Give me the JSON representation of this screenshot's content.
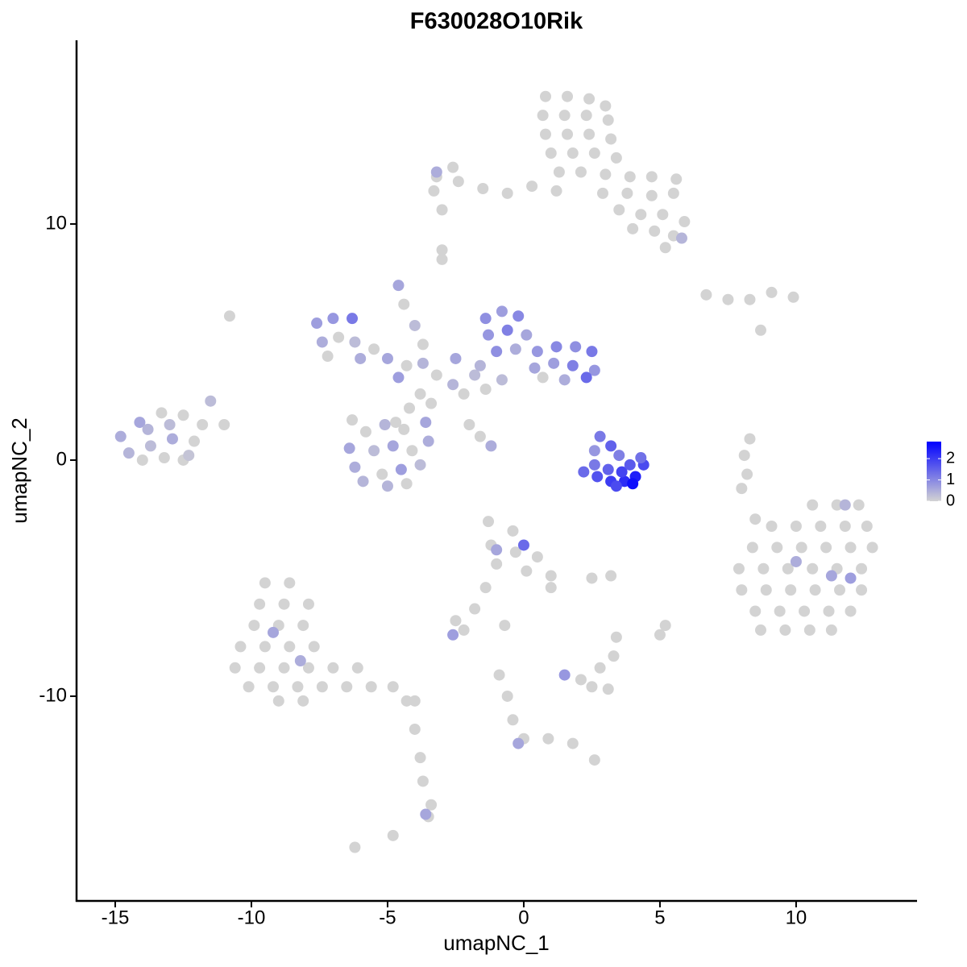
{
  "chart_data": {
    "type": "scatter",
    "title": "F630028O10Rik",
    "x_label": "umapNC_1",
    "y_label": "umapNC_2",
    "xlim": [
      -16.42,
      14.44
    ],
    "ylim": [
      -18.67,
      17.78
    ],
    "xticks": [
      -15,
      -10,
      -5,
      0,
      5,
      10
    ],
    "yticks": [
      -10,
      0,
      10
    ],
    "colors": [
      "#d3d3d3",
      "#0000ff"
    ],
    "clim": [
      0,
      2.8
    ],
    "cticks": [
      0,
      1,
      2
    ],
    "x": [
      0.8,
      1.6,
      2.4,
      3.0,
      0.7,
      1.5,
      2.3,
      3.1,
      0.8,
      1.6,
      2.4,
      3.2,
      1.0,
      1.8,
      2.6,
      3.4,
      1.3,
      2.1,
      3.0,
      3.9,
      4.7,
      5.6,
      1.2,
      2.9,
      3.8,
      4.7,
      5.5,
      3.5,
      4.3,
      5.1,
      5.9,
      4.8,
      5.5,
      4.0,
      0.3,
      -0.6,
      -1.5,
      -2.4,
      -3.2,
      -2.6,
      -3.3,
      -3.0,
      -3.0,
      -3.0,
      6.7,
      7.5,
      8.3,
      9.1,
      9.9,
      8.7,
      8.3,
      8.1,
      8.2,
      8.0,
      8.5,
      -10.8,
      5.2,
      2.5,
      3.2,
      -0.7,
      5.0,
      5.2,
      10.6,
      11.5,
      12.3,
      9.1,
      10.0,
      10.9,
      11.8,
      12.6,
      8.4,
      9.3,
      10.2,
      11.1,
      12.0,
      12.8,
      7.9,
      8.8,
      9.7,
      10.6,
      11.5,
      12.4,
      8.0,
      8.9,
      9.8,
      10.7,
      11.6,
      12.4,
      8.5,
      9.4,
      10.3,
      11.2,
      12.0,
      8.7,
      9.6,
      10.5,
      11.3,
      -9.5,
      -8.6,
      -9.7,
      -8.8,
      -7.9,
      -9.9,
      -9.0,
      -8.1,
      -10.4,
      -9.5,
      -8.6,
      -7.7,
      -10.6,
      -9.7,
      -8.8,
      -7.9,
      -7.0,
      -6.1,
      -10.1,
      -9.2,
      -8.3,
      -7.4,
      -6.5,
      -5.6,
      -4.8,
      -9.0,
      -8.1,
      -4.3,
      -4.0,
      -4.0,
      -3.8,
      -3.7,
      -3.4,
      -3.5,
      -4.8,
      -6.2,
      -1.3,
      -0.4,
      -1.2,
      -0.3,
      0.5,
      -1.0,
      0.1,
      1.0,
      1.0,
      -1.4,
      -1.8,
      -2.5,
      -2.2,
      2.1,
      2.8,
      3.3,
      2.5,
      3.1,
      3.4,
      -0.9,
      -0.6,
      -0.4,
      0.0,
      0.9,
      1.8,
      2.6,
      -14.8,
      -14.1,
      -13.3,
      -12.5,
      -11.8,
      -11.0,
      -11.5,
      -14.5,
      -13.7,
      -12.9,
      -12.1,
      -13.2,
      -12.5,
      -13.8,
      -13.0,
      -12.3,
      -14.0,
      -7.6,
      -7.0,
      -6.3,
      -7.4,
      -6.8,
      -6.2,
      -5.5,
      -5.0,
      -4.3,
      -3.7,
      -4.6,
      -6.0,
      -7.2,
      -4.6,
      -4.4,
      -4.0,
      -3.7,
      -3.2,
      -2.6,
      -3.8,
      -4.2,
      -3.4,
      -4.7,
      -2.2,
      -1.8,
      -2.0,
      -1.6,
      -1.2,
      -6.4,
      -5.8,
      -5.1,
      -4.4,
      -6.2,
      -5.5,
      -4.8,
      -4.1,
      -3.5,
      -5.9,
      -5.2,
      -4.5,
      -3.8,
      -5.0,
      -4.3,
      -6.3,
      -3.6,
      -1.4,
      -0.8,
      -0.2,
      -1.3,
      -0.6,
      0.1,
      -1.0,
      -0.3,
      0.5,
      1.2,
      1.9,
      2.5,
      0.4,
      1.1,
      1.8,
      2.6,
      -1.6,
      -2.5,
      0.7,
      2.3,
      1.5,
      -0.8,
      -1.4,
      2.8,
      3.2,
      3.5,
      2.2,
      2.7,
      3.2,
      3.7,
      4.1,
      4.4,
      2.6,
      3.1,
      3.6,
      4.0,
      3.9,
      4.3,
      3.4,
      2.6,
      10.0,
      11.3,
      12.0,
      11.8,
      -9.2,
      -8.2,
      -3.6,
      0.0,
      -1.0,
      1.5,
      -0.2,
      -2.6,
      -3.2,
      5.8
    ],
    "y": [
      15.4,
      15.4,
      15.3,
      15.0,
      14.6,
      14.6,
      14.6,
      14.4,
      13.8,
      13.8,
      13.8,
      13.6,
      13.0,
      13.0,
      13.0,
      12.8,
      12.2,
      12.2,
      12.1,
      12.0,
      12.0,
      11.9,
      11.4,
      11.3,
      11.3,
      11.2,
      11.3,
      10.6,
      10.4,
      10.4,
      10.1,
      9.7,
      9.5,
      9.8,
      11.6,
      11.3,
      11.5,
      11.8,
      12.0,
      12.4,
      11.4,
      10.6,
      8.9,
      8.5,
      7.0,
      6.8,
      6.8,
      7.1,
      6.9,
      5.5,
      0.9,
      0.2,
      -0.6,
      -1.2,
      -2.5,
      6.1,
      9.0,
      -5.0,
      -4.9,
      -7.0,
      -7.4,
      -7.0,
      -1.9,
      -1.9,
      -1.9,
      -2.8,
      -2.8,
      -2.8,
      -2.8,
      -2.8,
      -3.7,
      -3.7,
      -3.7,
      -3.7,
      -3.7,
      -3.7,
      -4.6,
      -4.6,
      -4.6,
      -4.6,
      -4.6,
      -4.6,
      -5.5,
      -5.5,
      -5.5,
      -5.5,
      -5.5,
      -5.5,
      -6.4,
      -6.4,
      -6.4,
      -6.4,
      -6.4,
      -7.2,
      -7.2,
      -7.2,
      -7.2,
      -5.2,
      -5.2,
      -6.1,
      -6.1,
      -6.1,
      -7.0,
      -7.0,
      -7.0,
      -7.9,
      -7.9,
      -7.9,
      -7.9,
      -8.8,
      -8.8,
      -8.8,
      -8.8,
      -8.8,
      -8.8,
      -9.6,
      -9.6,
      -9.6,
      -9.6,
      -9.6,
      -9.6,
      -9.6,
      -10.2,
      -10.2,
      -10.2,
      -10.2,
      -11.4,
      -12.6,
      -13.6,
      -14.6,
      -15.1,
      -15.9,
      -16.4,
      -2.6,
      -3.0,
      -3.6,
      -3.9,
      -4.1,
      -4.4,
      -4.7,
      -4.9,
      -5.4,
      -5.4,
      -6.3,
      -6.8,
      -7.2,
      -9.3,
      -8.8,
      -8.3,
      -9.6,
      -9.7,
      -7.5,
      -9.1,
      -10.0,
      -11.0,
      -11.8,
      -11.8,
      -12.0,
      -12.7,
      1.0,
      1.6,
      2.0,
      1.9,
      1.5,
      1.5,
      2.5,
      0.3,
      0.6,
      0.9,
      0.8,
      0.1,
      0.0,
      1.3,
      1.5,
      0.2,
      0.0,
      5.8,
      6.0,
      6.0,
      5.0,
      5.2,
      5.0,
      4.7,
      4.3,
      4.0,
      4.1,
      3.5,
      4.3,
      4.4,
      7.4,
      6.6,
      5.7,
      4.9,
      3.6,
      3.2,
      2.8,
      2.2,
      2.4,
      1.6,
      2.8,
      3.6,
      1.5,
      1.0,
      0.6,
      0.5,
      1.2,
      1.5,
      1.3,
      -0.3,
      0.4,
      0.6,
      0.4,
      0.8,
      -0.9,
      -0.6,
      -0.4,
      -0.2,
      -1.1,
      -1.0,
      1.7,
      1.6,
      6.0,
      6.3,
      6.1,
      5.3,
      5.5,
      5.3,
      4.6,
      4.7,
      4.6,
      4.8,
      4.8,
      4.6,
      3.9,
      4.1,
      4.0,
      3.8,
      4.0,
      4.3,
      3.5,
      3.5,
      3.4,
      3.4,
      3.0,
      1.0,
      0.6,
      0.2,
      -0.5,
      -0.7,
      -0.9,
      -0.9,
      -0.7,
      -0.2,
      -0.2,
      -0.4,
      -0.5,
      -1.0,
      -0.2,
      0.1,
      -1.1,
      0.4,
      -4.3,
      -4.9,
      -5.0,
      -1.9,
      -7.3,
      -8.5,
      -15.0,
      -3.6,
      -3.8,
      -9.1,
      -12.0,
      -7.4,
      12.2,
      9.4
    ],
    "values": [
      0,
      0,
      0,
      0,
      0,
      0,
      0,
      0,
      0,
      0,
      0,
      0,
      0,
      0,
      0,
      0,
      0,
      0,
      0,
      0,
      0,
      0,
      0,
      0,
      0,
      0,
      0,
      0,
      0,
      0,
      0,
      0,
      0,
      0,
      0,
      0,
      0,
      0,
      0,
      0,
      0,
      0,
      0,
      0,
      0,
      0,
      0,
      0,
      0,
      0,
      0,
      0,
      0,
      0,
      0,
      0,
      0,
      0,
      0,
      0,
      0,
      0,
      0,
      0,
      0,
      0,
      0,
      0,
      0,
      0,
      0,
      0,
      0,
      0,
      0,
      0,
      0,
      0,
      0,
      0,
      0,
      0,
      0,
      0,
      0,
      0,
      0,
      0,
      0,
      0,
      0,
      0,
      0,
      0,
      0,
      0,
      0,
      0,
      0,
      0,
      0,
      0,
      0,
      0,
      0,
      0,
      0,
      0,
      0,
      0,
      0,
      0,
      0,
      0,
      0,
      0,
      0,
      0,
      0,
      0,
      0,
      0,
      0,
      0,
      0,
      0,
      0,
      0,
      0,
      0,
      0,
      0,
      0,
      0,
      0,
      0,
      0,
      0,
      0,
      0,
      0,
      0,
      0,
      0,
      0,
      0,
      0,
      0,
      0,
      0,
      0,
      0,
      0,
      0,
      0,
      0,
      0,
      0,
      0,
      0.5,
      0.6,
      0,
      0,
      0,
      0,
      0.3,
      0.4,
      0.3,
      0.5,
      0,
      0,
      0,
      0.4,
      0.3,
      0.2,
      0,
      0.7,
      0.8,
      1.2,
      0.5,
      0,
      0.3,
      0,
      0.6,
      0,
      0.4,
      0.7,
      0.5,
      0,
      0.6,
      0,
      0.3,
      0,
      0,
      0.4,
      0,
      0,
      0,
      0,
      0,
      0.3,
      0,
      0,
      0.5,
      0.6,
      0,
      0.4,
      0,
      0.5,
      0.3,
      0.6,
      0,
      0.5,
      0.4,
      0,
      0.7,
      0.3,
      0.4,
      0,
      0,
      0.6,
      0.9,
      0.7,
      1.0,
      0.8,
      1.1,
      0.6,
      0.9,
      0.5,
      0.8,
      1.0,
      0.9,
      1.2,
      0.6,
      0.7,
      1.1,
      0.8,
      0.4,
      0.6,
      0,
      1.4,
      0.5,
      0.3,
      0,
      1.2,
      1.5,
      1.1,
      1.4,
      1.7,
      2.0,
      2.2,
      2.4,
      1.8,
      1.2,
      1.5,
      1.9,
      2.6,
      1.6,
      1.3,
      1.8,
      0.8,
      0.5,
      0.6,
      0.7,
      0.4,
      0.6,
      0.5,
      0.6,
      1.4,
      0.6,
      0.8,
      0.6,
      0.7,
      0.5,
      0.4
    ]
  }
}
